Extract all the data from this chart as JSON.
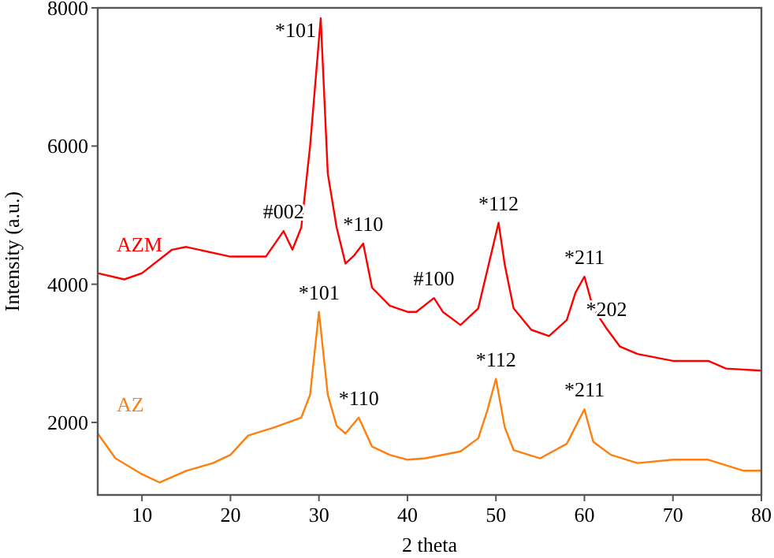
{
  "chart_data": {
    "type": "line",
    "xlabel": "2 theta",
    "ylabel": "Intensity (a.u.)",
    "xlim": [
      5,
      80
    ],
    "ylim": [
      950,
      8000
    ],
    "xticks": [
      10,
      20,
      30,
      40,
      50,
      60,
      70,
      80
    ],
    "yticks": [
      2000,
      4000,
      6000,
      8000
    ],
    "grid": false,
    "marker": "none",
    "line_style": "solid",
    "series": [
      {
        "name": "AZM",
        "color": "#ff0000",
        "x": [
          5,
          8,
          10,
          13.4,
          15,
          20,
          24,
          26,
          27,
          28,
          29,
          30.2,
          31,
          32,
          33,
          34,
          35,
          36,
          38,
          40,
          41,
          43,
          44,
          46,
          48,
          49,
          50.3,
          51,
          52,
          54,
          56,
          58,
          59,
          60,
          61,
          62.5,
          64,
          66,
          70,
          74,
          76,
          80
        ],
        "values": [
          4160,
          4070,
          4160,
          4500,
          4540,
          4400,
          4400,
          4770,
          4500,
          4820,
          6000,
          7850,
          5600,
          4820,
          4300,
          4420,
          4590,
          3950,
          3690,
          3600,
          3600,
          3800,
          3600,
          3410,
          3650,
          4190,
          4890,
          4280,
          3650,
          3340,
          3250,
          3480,
          3880,
          4110,
          3650,
          3360,
          3100,
          2990,
          2890,
          2890,
          2780,
          2750
        ]
      },
      {
        "name": "AZ",
        "color": "#ff7f0e",
        "x": [
          5,
          7,
          10,
          12,
          15,
          18,
          20,
          22,
          25,
          28,
          29,
          30,
          31,
          32,
          33,
          34.5,
          36,
          38,
          40,
          42,
          46,
          48,
          49,
          50,
          51,
          52,
          55,
          58,
          60,
          61,
          63,
          66,
          70,
          74,
          78,
          80
        ],
        "values": [
          1840,
          1480,
          1250,
          1130,
          1300,
          1410,
          1530,
          1810,
          1930,
          2070,
          2400,
          3600,
          2400,
          1950,
          1840,
          2070,
          1650,
          1530,
          1460,
          1480,
          1580,
          1770,
          2160,
          2630,
          1930,
          1600,
          1480,
          1690,
          2190,
          1720,
          1530,
          1410,
          1460,
          1460,
          1300,
          1300
        ]
      }
    ],
    "annotations": [
      {
        "text": "*101",
        "x": 30.2,
        "y": 7850
      },
      {
        "text": "#002",
        "x": 26,
        "y": 4770
      },
      {
        "text": "*110",
        "x": 35,
        "y": 4590
      },
      {
        "text": "#100",
        "x": 43,
        "y": 3800
      },
      {
        "text": "*112",
        "x": 50.3,
        "y": 4890
      },
      {
        "text": "*211",
        "x": 60,
        "y": 4110
      },
      {
        "text": "*202",
        "x": 62.5,
        "y": 3360
      },
      {
        "text": "*101",
        "x": 30,
        "y": 3600
      },
      {
        "text": "*110",
        "x": 34.5,
        "y": 2070
      },
      {
        "text": "*112",
        "x": 50,
        "y": 2630
      },
      {
        "text": "*211",
        "x": 60,
        "y": 2190
      }
    ]
  }
}
